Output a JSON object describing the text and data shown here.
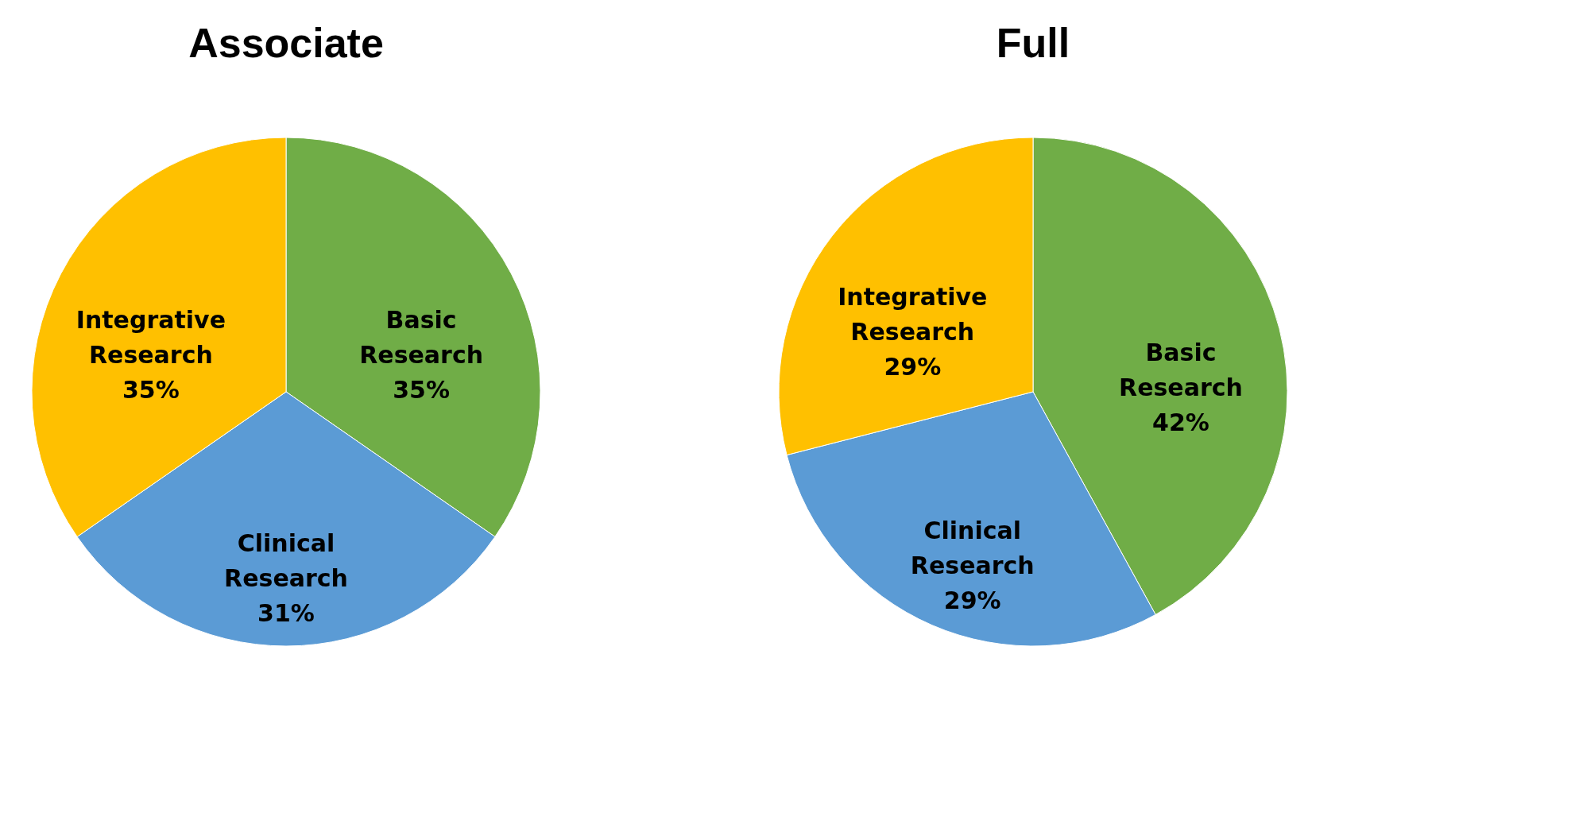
{
  "chart_data": [
    {
      "type": "pie",
      "title": "Associate",
      "categories": [
        "Basic Research",
        "Clinical Research",
        "Integrative Research"
      ],
      "values": [
        35,
        31,
        35
      ],
      "colors": [
        "#70ad47",
        "#5b9bd5",
        "#ffc000"
      ],
      "value_labels": [
        "35%",
        "31%",
        "35%"
      ],
      "legend": false
    },
    {
      "type": "pie",
      "title": "Full",
      "categories": [
        "Basic Research",
        "Clinical Research",
        "Integrative Research"
      ],
      "values": [
        42,
        29,
        29
      ],
      "colors": [
        "#70ad47",
        "#5b9bd5",
        "#ffc000"
      ],
      "value_labels": [
        "42%",
        "29%",
        "29%"
      ],
      "legend": false
    }
  ]
}
